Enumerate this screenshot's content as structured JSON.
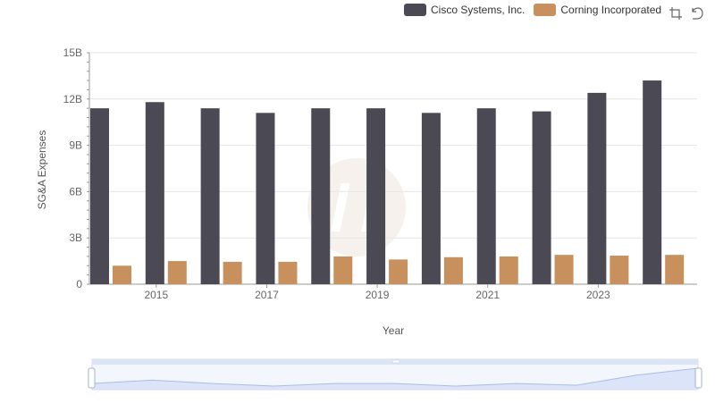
{
  "chart_data": {
    "type": "bar",
    "categories": [
      "2014",
      "2015",
      "2016",
      "2017",
      "2018",
      "2019",
      "2020",
      "2021",
      "2022",
      "2023",
      "2024"
    ],
    "tick_labels": [
      "2015",
      "2017",
      "2019",
      "2021",
      "2023"
    ],
    "series": [
      {
        "name": "Cisco Systems, Inc.",
        "color": "#4a4954",
        "values": [
          11.4,
          11.8,
          11.4,
          11.1,
          11.4,
          11.4,
          11.1,
          11.4,
          11.2,
          12.4,
          13.2
        ]
      },
      {
        "name": "Corning Incorporated",
        "color": "#c8905d",
        "values": [
          1.2,
          1.5,
          1.45,
          1.45,
          1.8,
          1.6,
          1.75,
          1.8,
          1.9,
          1.85,
          1.9
        ]
      }
    ],
    "ylim": [
      0,
      15
    ],
    "yticks": [
      0,
      3,
      6,
      9,
      12,
      15
    ],
    "ytick_labels": [
      "0",
      "3B",
      "6B",
      "9B",
      "12B",
      "15B"
    ],
    "ylabel": "SG&A Expenses",
    "xlabel": "Year",
    "legend_position": "top-right",
    "grid": true
  },
  "toolbox": {
    "zoom_icon": "data-zoom-icon",
    "reset_icon": "restore-icon"
  }
}
